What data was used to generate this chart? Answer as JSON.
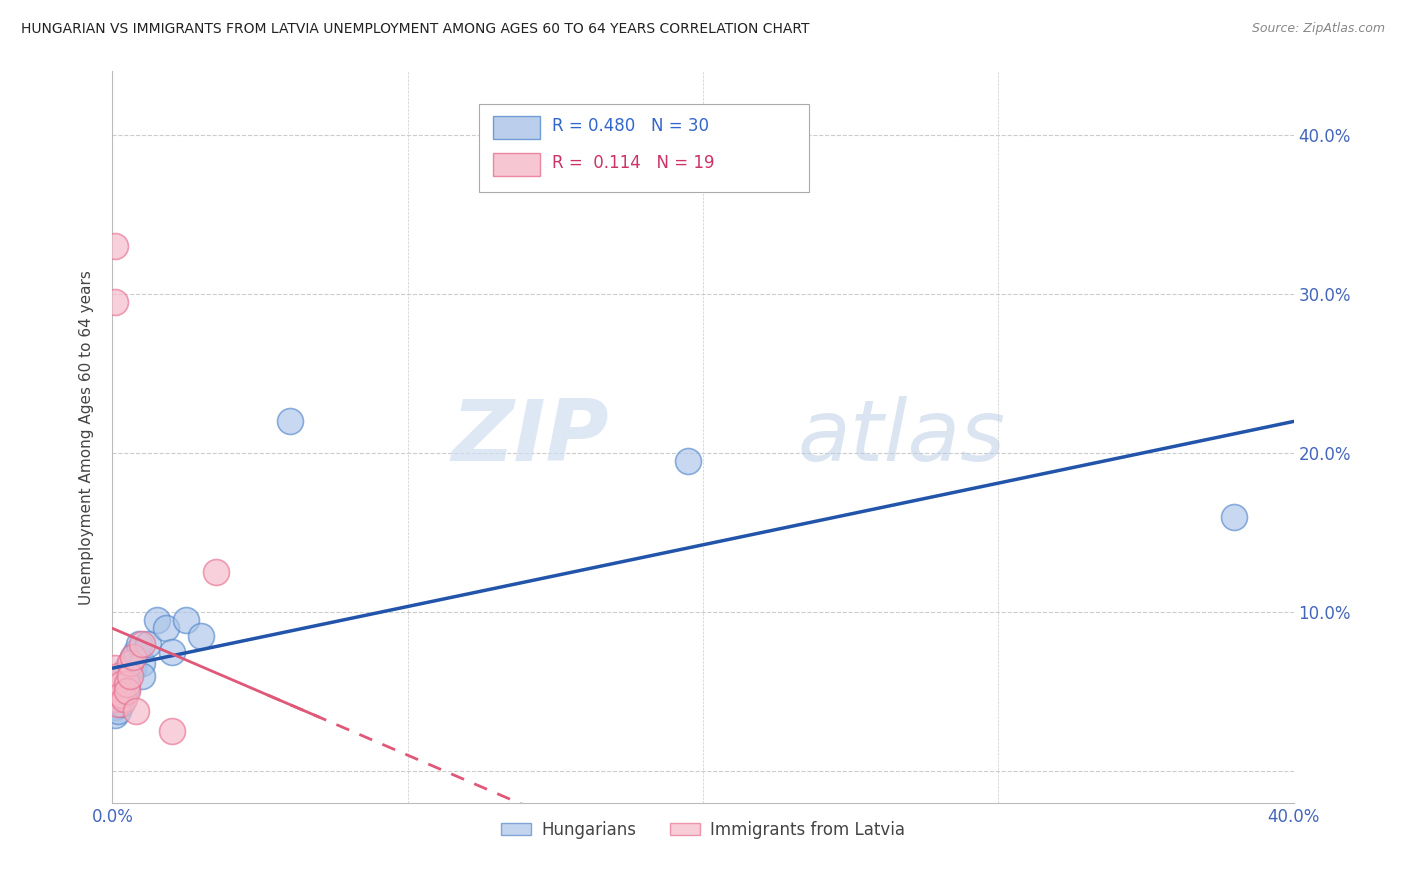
{
  "title": "HUNGARIAN VS IMMIGRANTS FROM LATVIA UNEMPLOYMENT AMONG AGES 60 TO 64 YEARS CORRELATION CHART",
  "source": "Source: ZipAtlas.com",
  "ylabel": "Unemployment Among Ages 60 to 64 years",
  "xlim": [
    0.0,
    0.4
  ],
  "ylim": [
    -0.02,
    0.44
  ],
  "xticks": [
    0.0,
    0.1,
    0.2,
    0.3,
    0.4
  ],
  "yticks": [
    0.0,
    0.1,
    0.2,
    0.3,
    0.4
  ],
  "xticklabels": [
    "0.0%",
    "",
    "",
    "",
    "40.0%"
  ],
  "yticklabels_right": [
    "",
    "10.0%",
    "20.0%",
    "30.0%",
    "40.0%"
  ],
  "background_color": "#ffffff",
  "watermark_zip": "ZIP",
  "watermark_atlas": "atlas",
  "hungarian_R": "0.480",
  "hungarian_N": "30",
  "latvian_R": "0.114",
  "latvian_N": "19",
  "hungarian_color": "#aac4e8",
  "latvian_color": "#f4b8c8",
  "hungarian_edge_color": "#5588cc",
  "latvian_edge_color": "#e87090",
  "trend_hungarian_color": "#2255aa",
  "trend_latvian_solid_color": "#e05878",
  "trend_latvian_dashed_color": "#e05878",
  "hungarian_x": [
    0.001,
    0.001,
    0.001,
    0.002,
    0.002,
    0.002,
    0.003,
    0.003,
    0.003,
    0.004,
    0.004,
    0.005,
    0.005,
    0.005,
    0.006,
    0.007,
    0.007,
    0.008,
    0.009,
    0.01,
    0.01,
    0.012,
    0.015,
    0.018,
    0.02,
    0.025,
    0.03,
    0.06,
    0.195,
    0.38
  ],
  "hungarian_y": [
    0.045,
    0.04,
    0.035,
    0.05,
    0.045,
    0.038,
    0.055,
    0.048,
    0.042,
    0.06,
    0.055,
    0.065,
    0.058,
    0.052,
    0.068,
    0.072,
    0.065,
    0.075,
    0.08,
    0.068,
    0.06,
    0.08,
    0.095,
    0.09,
    0.075,
    0.095,
    0.085,
    0.22,
    0.195,
    0.16
  ],
  "latvian_x": [
    0.001,
    0.001,
    0.001,
    0.001,
    0.001,
    0.002,
    0.002,
    0.003,
    0.003,
    0.004,
    0.005,
    0.005,
    0.006,
    0.006,
    0.007,
    0.008,
    0.01,
    0.02,
    0.035
  ],
  "latvian_y": [
    0.33,
    0.295,
    0.065,
    0.05,
    0.045,
    0.06,
    0.042,
    0.055,
    0.048,
    0.045,
    0.055,
    0.05,
    0.068,
    0.06,
    0.072,
    0.038,
    0.08,
    0.025,
    0.125
  ],
  "grid_color": "#cccccc",
  "figsize": [
    14.06,
    8.92
  ],
  "dpi": 100
}
